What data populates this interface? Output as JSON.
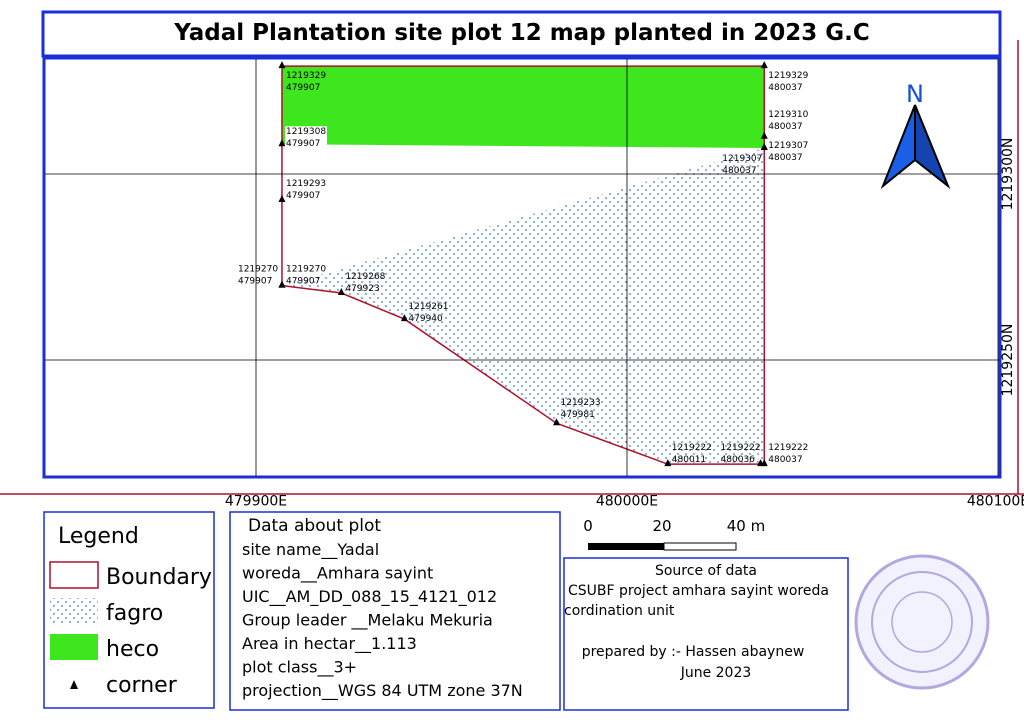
{
  "title": "Yadal Plantation site plot 12 map planted in 2023 G.C",
  "map": {
    "xgrid": [
      {
        "value": 479900,
        "label": "479900E"
      },
      {
        "value": 480000,
        "label": "480000E"
      },
      {
        "value": 480100,
        "label": "480100E"
      }
    ],
    "ygrid": [
      {
        "value": 1219300,
        "label": "1219300N"
      },
      {
        "value": 1219250,
        "label": "1219250N"
      }
    ],
    "north": "N",
    "points": [
      {
        "northing": 1219329,
        "easting": 479907
      },
      {
        "northing": 1219329,
        "easting": 480037
      },
      {
        "northing": 1219308,
        "easting": 479907
      },
      {
        "northing": 1219310,
        "easting": 480037
      },
      {
        "northing": 1219307,
        "easting": 480037
      },
      {
        "northing": 1219307,
        "easting": 480037
      },
      {
        "northing": 1219293,
        "easting": 479907
      },
      {
        "northing": 1219270,
        "easting": 479907
      },
      {
        "northing": 1219270,
        "easting": 479907
      },
      {
        "northing": 1219268,
        "easting": 479923
      },
      {
        "northing": 1219261,
        "easting": 479940
      },
      {
        "northing": 1219233,
        "easting": 479981
      },
      {
        "northing": 1219222,
        "easting": 480011
      },
      {
        "northing": 1219222,
        "easting": 480036
      },
      {
        "northing": 1219222,
        "easting": 480037
      }
    ]
  },
  "legend": {
    "title": "Legend",
    "items": [
      "Boundary",
      "fagro",
      "heco",
      "corner"
    ]
  },
  "plot_info": {
    "heading": "Data about plot",
    "lines": [
      "site name__Yadal",
      "woreda__Amhara sayint",
      "UIC__AM_DD_088_15_4121_012",
      "Group leader __Melaku Mekuria",
      "Area in hectar__1.113",
      "plot class__3+",
      "projection__WGS 84 UTM zone 37N"
    ]
  },
  "scale": {
    "labels": [
      "0",
      "20",
      "40 m"
    ]
  },
  "source": {
    "heading": "Source of data",
    "lines": [
      "CSUBF project amhara sayint woreda",
      "cordination unit"
    ],
    "prepared_by": "prepared by :- Hassen abaynew",
    "date": "June 2023"
  }
}
